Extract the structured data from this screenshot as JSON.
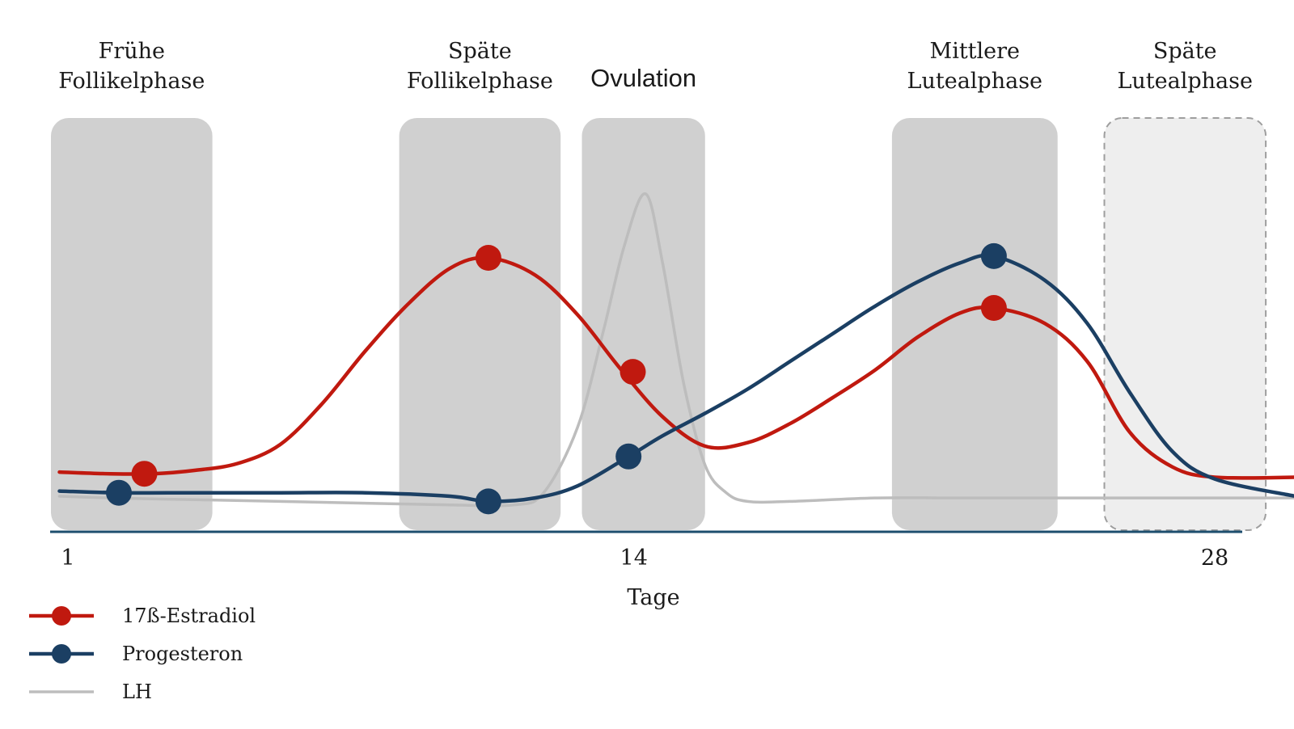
{
  "chart_data": {
    "type": "line",
    "title": "",
    "xlabel": "Tage",
    "ylabel": "",
    "xlim": [
      1,
      28
    ],
    "x_ticks": [
      {
        "value": 1,
        "label": "1"
      },
      {
        "value": 14,
        "label": "14"
      },
      {
        "value": 28,
        "label": "28"
      }
    ],
    "grid": false,
    "legend_position": "bottom-left",
    "phases": [
      {
        "lines": [
          "Frühe",
          "Follikelphase"
        ],
        "start": 0.6,
        "end": 4.4,
        "style": "solid",
        "emphasis": false
      },
      {
        "lines": [
          "Späte",
          "Follikelphase"
        ],
        "start": 8.8,
        "end": 12.6,
        "style": "solid",
        "emphasis": false
      },
      {
        "lines": [
          "Ovulation"
        ],
        "start": 13.1,
        "end": 16.0,
        "style": "solid",
        "emphasis": true
      },
      {
        "lines": [
          "Mittlere",
          "Lutealphase"
        ],
        "start": 20.4,
        "end": 24.3,
        "style": "solid",
        "emphasis": false
      },
      {
        "lines": [
          "Späte",
          "Lutealphase"
        ],
        "start": 25.4,
        "end": 29.2,
        "style": "dashed",
        "emphasis": false
      }
    ],
    "series": [
      {
        "name": "17ß-Estradiol",
        "color": "#c0190f",
        "x": [
          0.8,
          2,
          3,
          4,
          5,
          6,
          7,
          8,
          9,
          10,
          10.9,
          12,
          13,
          14,
          15,
          16,
          17,
          18,
          19,
          20,
          21,
          22,
          22.8,
          24,
          25,
          26,
          27,
          28,
          29.9
        ],
        "y": [
          1.4,
          1.3,
          1.3,
          1.5,
          1.9,
          3.0,
          5.4,
          8.4,
          11.1,
          13.2,
          13.8,
          12.8,
          10.5,
          7.4,
          4.6,
          2.9,
          3.1,
          4.2,
          5.7,
          7.3,
          9.2,
          10.6,
          10.9,
          10.0,
          7.8,
          3.7,
          1.7,
          1.1,
          1.1
        ]
      },
      {
        "name": "Progesteron",
        "color": "#1b3f63",
        "x": [
          0.8,
          2.2,
          4,
          6,
          8,
          10,
          10.9,
          12,
          13,
          14.2,
          15,
          16,
          17,
          18,
          19,
          20,
          21,
          22,
          22.8,
          24,
          25,
          26,
          27,
          28,
          29.9
        ],
        "y": [
          0.3,
          0.2,
          0.2,
          0.2,
          0.2,
          0.0,
          -0.3,
          -0.1,
          0.6,
          2.3,
          3.5,
          4.8,
          6.2,
          7.8,
          9.4,
          11.0,
          12.4,
          13.5,
          13.9,
          12.5,
          10.0,
          6.0,
          2.6,
          1.0,
          0.0
        ]
      },
      {
        "name": "LH",
        "color": "#bdbdbd",
        "x": [
          0.8,
          2,
          4,
          6,
          8,
          10,
          11.5,
          12.2,
          13,
          13.6,
          14.1,
          14.6,
          15,
          15.5,
          16,
          16.5,
          17,
          18,
          20,
          22,
          24,
          26,
          28,
          29.9
        ],
        "y": [
          0.0,
          -0.1,
          -0.2,
          -0.3,
          -0.4,
          -0.5,
          -0.5,
          0.2,
          4.0,
          9.5,
          14.5,
          17.5,
          13.5,
          6.5,
          1.8,
          0.2,
          -0.3,
          -0.3,
          -0.1,
          -0.1,
          -0.1,
          -0.1,
          -0.1,
          -0.1
        ]
      }
    ],
    "markers": [
      {
        "series": "17ß-Estradiol",
        "x": 2.8,
        "y": 1.3
      },
      {
        "series": "17ß-Estradiol",
        "x": 10.9,
        "y": 13.8
      },
      {
        "series": "17ß-Estradiol",
        "x": 14.3,
        "y": 7.2
      },
      {
        "series": "17ß-Estradiol",
        "x": 22.8,
        "y": 10.9
      },
      {
        "series": "Progesteron",
        "x": 2.2,
        "y": 0.2
      },
      {
        "series": "Progesteron",
        "x": 10.9,
        "y": -0.3
      },
      {
        "series": "Progesteron",
        "x": 14.2,
        "y": 2.3
      },
      {
        "series": "Progesteron",
        "x": 22.8,
        "y": 13.9
      }
    ],
    "legend": [
      {
        "label": "17ß-Estradiol",
        "color": "#c0190f",
        "marker": true
      },
      {
        "label": "Progesteron",
        "color": "#1b3f63",
        "marker": true
      },
      {
        "label": "LH",
        "color": "#bdbdbd",
        "marker": false
      }
    ],
    "colors": {
      "axis": "#1d4e6e",
      "phase_fill": "#d0d0d0",
      "phase_fill_dashed": "#eeeeee",
      "phase_dashed_border": "#9e9e9e"
    }
  }
}
